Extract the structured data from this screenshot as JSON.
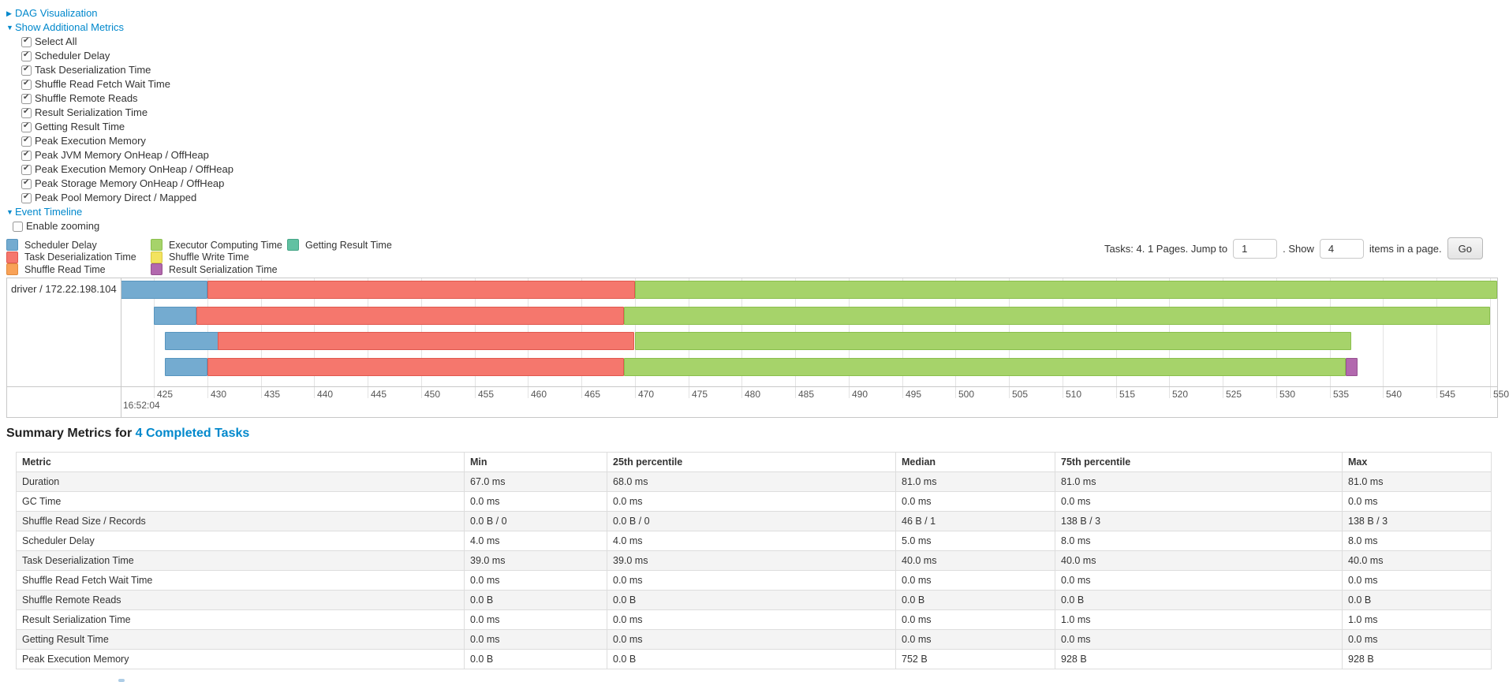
{
  "top": {
    "dag_label": "DAG Visualization",
    "metrics_header": "Show Additional Metrics",
    "metrics_items": [
      "Select All",
      "Scheduler Delay",
      "Task Deserialization Time",
      "Shuffle Read Fetch Wait Time",
      "Shuffle Remote Reads",
      "Result Serialization Time",
      "Getting Result Time",
      "Peak Execution Memory",
      "Peak JVM Memory OnHeap / OffHeap",
      "Peak Execution Memory OnHeap / OffHeap",
      "Peak Storage Memory OnHeap / OffHeap",
      "Peak Pool Memory Direct / Mapped"
    ],
    "event_timeline_label": "Event Timeline",
    "enable_zooming_label": "Enable zooming"
  },
  "colors": {
    "link": "#0088cc",
    "scheduler_delay": {
      "fill": "#74abd0",
      "border": "#5795be"
    },
    "task_deserialization": {
      "fill": "#f5776d",
      "border": "#e0584e"
    },
    "shuffle_read": {
      "fill": "#f9a257",
      "border": "#e08a3c"
    },
    "executor_computing": {
      "fill": "#a6d36a",
      "border": "#8abf4d"
    },
    "shuffle_write": {
      "fill": "#f3e35f",
      "border": "#d9c93f"
    },
    "result_serialization": {
      "fill": "#b268ae",
      "border": "#96518f"
    },
    "getting_result": {
      "fill": "#61c1a2",
      "border": "#45a586"
    }
  },
  "legend": {
    "columns": [
      [
        {
          "label": "Scheduler Delay",
          "key": "scheduler_delay"
        },
        {
          "label": "Task Deserialization Time",
          "key": "task_deserialization"
        },
        {
          "label": "Shuffle Read Time",
          "key": "shuffle_read"
        }
      ],
      [
        {
          "label": "Executor Computing Time",
          "key": "executor_computing"
        },
        {
          "label": "Shuffle Write Time",
          "key": "shuffle_write"
        },
        {
          "label": "Result Serialization Time",
          "key": "result_serialization"
        }
      ],
      [
        {
          "label": "Getting Result Time",
          "key": "getting_result"
        }
      ]
    ]
  },
  "pagination": {
    "tasks_text": "Tasks: 4. 1 Pages. Jump to",
    "jump_value": "1",
    "show_text": ". Show",
    "show_value": "4",
    "items_text": "items in a page.",
    "go_label": "Go"
  },
  "chart_data": {
    "type": "timeline",
    "group_label": "driver / 172.22.198.104",
    "axis": {
      "tick_start": 425,
      "tick_end": 550,
      "tick_step": 5,
      "base_time_label": "16:52:04",
      "unit": "milliseconds within second 16:52:04",
      "visible_range": [
        421.9,
        550.9
      ]
    },
    "tasks": [
      {
        "segments": [
          {
            "key": "scheduler_delay",
            "start": 421.9,
            "end": 430.0
          },
          {
            "key": "task_deserialization",
            "start": 430.0,
            "end": 470.0
          },
          {
            "key": "executor_computing",
            "start": 470.0,
            "end": 551.0
          }
        ]
      },
      {
        "segments": [
          {
            "key": "scheduler_delay",
            "start": 425.0,
            "end": 429.0
          },
          {
            "key": "task_deserialization",
            "start": 429.0,
            "end": 469.0
          },
          {
            "key": "executor_computing",
            "start": 469.0,
            "end": 550.0
          }
        ]
      },
      {
        "segments": [
          {
            "key": "scheduler_delay",
            "start": 426.0,
            "end": 431.0
          },
          {
            "key": "task_deserialization",
            "start": 431.0,
            "end": 470.0
          },
          {
            "key": "executor_computing",
            "start": 470.0,
            "end": 537.0
          }
        ]
      },
      {
        "segments": [
          {
            "key": "scheduler_delay",
            "start": 426.0,
            "end": 430.0
          },
          {
            "key": "task_deserialization",
            "start": 430.0,
            "end": 469.0
          },
          {
            "key": "executor_computing",
            "start": 469.0,
            "end": 536.5
          },
          {
            "key": "result_serialization",
            "start": 536.5,
            "end": 537.6
          }
        ]
      }
    ]
  },
  "summary": {
    "heading_prefix": "Summary Metrics for",
    "heading_link": "4 Completed Tasks",
    "table": {
      "headers": [
        "Metric",
        "Min",
        "25th percentile",
        "Median",
        "75th percentile",
        "Max"
      ],
      "rows": [
        [
          "Duration",
          "67.0 ms",
          "68.0 ms",
          "81.0 ms",
          "81.0 ms",
          "81.0 ms"
        ],
        [
          "GC Time",
          "0.0 ms",
          "0.0 ms",
          "0.0 ms",
          "0.0 ms",
          "0.0 ms"
        ],
        [
          "Shuffle Read Size / Records",
          "0.0 B / 0",
          "0.0 B / 0",
          "46 B / 1",
          "138 B / 3",
          "138 B / 3"
        ],
        [
          "Scheduler Delay",
          "4.0 ms",
          "4.0 ms",
          "5.0 ms",
          "8.0 ms",
          "8.0 ms"
        ],
        [
          "Task Deserialization Time",
          "39.0 ms",
          "39.0 ms",
          "40.0 ms",
          "40.0 ms",
          "40.0 ms"
        ],
        [
          "Shuffle Read Fetch Wait Time",
          "0.0 ms",
          "0.0 ms",
          "0.0 ms",
          "0.0 ms",
          "0.0 ms"
        ],
        [
          "Shuffle Remote Reads",
          "0.0 B",
          "0.0 B",
          "0.0 B",
          "0.0 B",
          "0.0 B"
        ],
        [
          "Result Serialization Time",
          "0.0 ms",
          "0.0 ms",
          "0.0 ms",
          "1.0 ms",
          "1.0 ms"
        ],
        [
          "Getting Result Time",
          "0.0 ms",
          "0.0 ms",
          "0.0 ms",
          "0.0 ms",
          "0.0 ms"
        ],
        [
          "Peak Execution Memory",
          "0.0 B",
          "0.0 B",
          "752 B",
          "928 B",
          "928 B"
        ]
      ]
    }
  }
}
